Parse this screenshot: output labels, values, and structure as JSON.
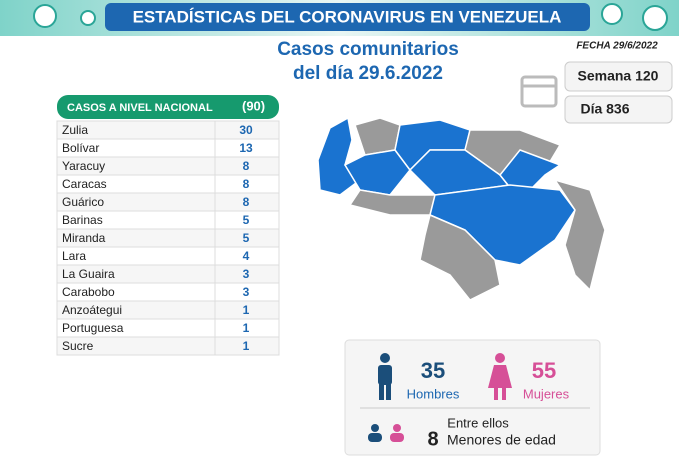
{
  "header": {
    "title": "ESTADÍSTICAS DEL CORONAVIRUS EN VENEZUELA",
    "subtitle_line1": "Casos comunitarios",
    "subtitle_line2": "del día 29.6.2022",
    "date": "FECHA 29/6/2022"
  },
  "week": "Semana 120",
  "day": "Día 836",
  "table": {
    "title": "CASOS A NIVEL NACIONAL",
    "total": "(90)",
    "rows": [
      [
        "Zulia",
        30
      ],
      [
        "Bolívar",
        13
      ],
      [
        "Yaracuy",
        8
      ],
      [
        "Caracas",
        8
      ],
      [
        "Guárico",
        8
      ],
      [
        "Barinas",
        5
      ],
      [
        "Miranda",
        5
      ],
      [
        "Lara",
        4
      ],
      [
        "La Guaira",
        3
      ],
      [
        "Carabobo",
        3
      ],
      [
        "Anzoátegui",
        1
      ],
      [
        "Portuguesa",
        1
      ],
      [
        "Sucre",
        1
      ]
    ]
  },
  "stats": {
    "men_count": 35,
    "men_label": "Hombres",
    "women_count": 55,
    "women_label": "Mujeres",
    "note": "Entre ellos",
    "minors_count": 8,
    "minors_label": "Menores de edad"
  }
}
